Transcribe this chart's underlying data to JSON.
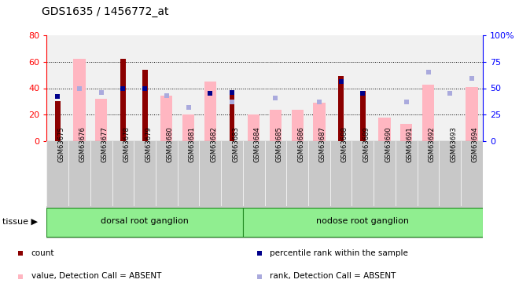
{
  "title": "GDS1635 / 1456772_at",
  "samples": [
    "GSM63675",
    "GSM63676",
    "GSM63677",
    "GSM63678",
    "GSM63679",
    "GSM63680",
    "GSM63681",
    "GSM63682",
    "GSM63683",
    "GSM63684",
    "GSM63685",
    "GSM63686",
    "GSM63687",
    "GSM63688",
    "GSM63689",
    "GSM63690",
    "GSM63691",
    "GSM63692",
    "GSM63693",
    "GSM63694"
  ],
  "count_values": [
    30,
    null,
    null,
    62,
    54,
    null,
    null,
    null,
    36,
    null,
    null,
    null,
    null,
    49,
    38,
    null,
    null,
    null,
    null,
    null
  ],
  "value_absent": [
    null,
    78,
    40,
    null,
    null,
    43,
    25,
    56,
    null,
    25,
    30,
    30,
    36,
    null,
    null,
    22,
    16,
    53,
    null,
    51
  ],
  "rank_absent": [
    null,
    50,
    46,
    null,
    null,
    43,
    32,
    null,
    37,
    null,
    41,
    null,
    37,
    null,
    null,
    null,
    37,
    65,
    45,
    59
  ],
  "percentile_dark": [
    42,
    null,
    null,
    50,
    50,
    null,
    null,
    45,
    46,
    null,
    null,
    null,
    null,
    56,
    45,
    null,
    null,
    null,
    null,
    null
  ],
  "tissue_groups": [
    {
      "label": "dorsal root ganglion",
      "start": 0,
      "end": 8
    },
    {
      "label": "nodose root ganglion",
      "start": 9,
      "end": 19
    }
  ],
  "ylim_left": [
    0,
    80
  ],
  "ylim_right": [
    0,
    100
  ],
  "yticks_left": [
    0,
    20,
    40,
    60,
    80
  ],
  "yticks_right": [
    0,
    25,
    50,
    75,
    100
  ],
  "count_color": "#8B0000",
  "value_absent_color": "#FFB6C1",
  "rank_absent_color": "#AAAADD",
  "percentile_dark_color": "#00008B",
  "plot_bg": "#ffffff",
  "gray_col_bg": "#C8C8C8",
  "tissue_color": "#90EE90",
  "tissue_border": "#228B22"
}
